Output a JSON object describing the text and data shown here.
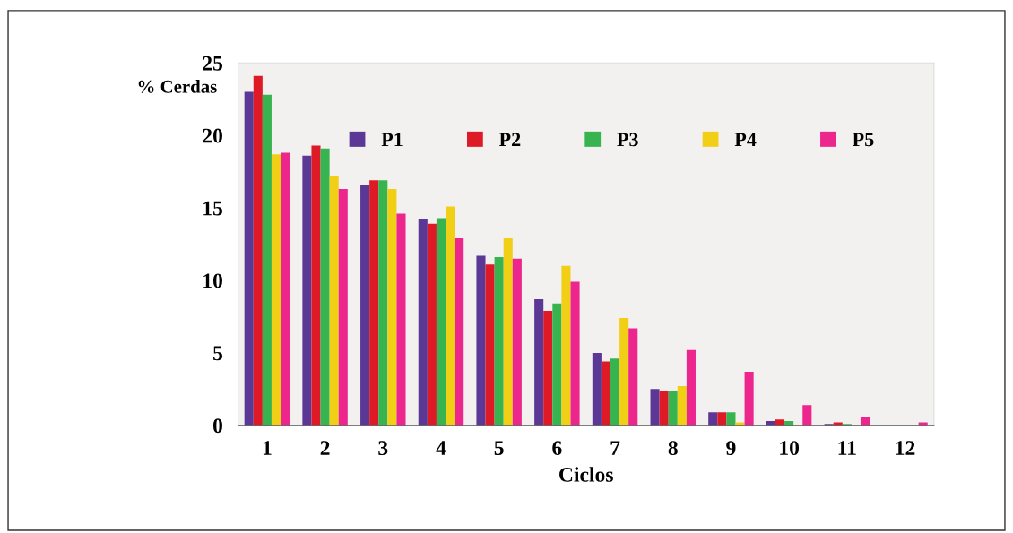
{
  "chart_data": {
    "type": "bar",
    "xlabel": "Ciclos",
    "ylabel": "% Cerdas",
    "categories": [
      "1",
      "2",
      "3",
      "4",
      "5",
      "6",
      "7",
      "8",
      "9",
      "10",
      "11",
      "12"
    ],
    "series": [
      {
        "name": "P1",
        "color": "#5b3796",
        "values": [
          23.0,
          18.6,
          16.6,
          14.2,
          11.7,
          8.7,
          5.0,
          2.5,
          0.9,
          0.3,
          0.1,
          0
        ]
      },
      {
        "name": "P2",
        "color": "#de1a27",
        "values": [
          24.1,
          19.3,
          16.9,
          13.9,
          11.1,
          7.9,
          4.4,
          2.4,
          0.9,
          0.4,
          0.2,
          0
        ]
      },
      {
        "name": "P3",
        "color": "#37b34f",
        "values": [
          22.8,
          19.1,
          16.9,
          14.3,
          11.6,
          8.4,
          4.6,
          2.4,
          0.9,
          0.3,
          0.1,
          0
        ]
      },
      {
        "name": "P4",
        "color": "#f2cf17",
        "values": [
          18.7,
          17.2,
          16.3,
          15.1,
          12.9,
          11.0,
          7.4,
          2.7,
          0.2,
          0,
          0,
          0
        ]
      },
      {
        "name": "P5",
        "color": "#ec268d",
        "values": [
          18.8,
          16.3,
          14.6,
          12.9,
          11.5,
          9.9,
          6.7,
          5.2,
          3.7,
          1.4,
          0.6,
          0.2
        ]
      }
    ],
    "ylim": [
      0,
      25
    ],
    "yticks": [
      0,
      5,
      10,
      15,
      20,
      25
    ],
    "grid": false,
    "legend": "top right"
  }
}
